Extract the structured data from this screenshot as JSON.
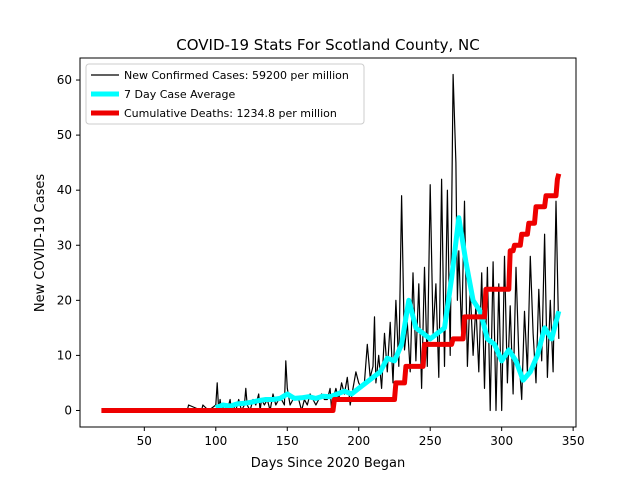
{
  "chart_data": {
    "type": "line",
    "title": "COVID-19 Stats For Scotland County, NC",
    "xlabel": "Days Since 2020 Began",
    "ylabel": "New COVID-19 Cases",
    "xlim": [
      5,
      352
    ],
    "ylim": [
      -3,
      64
    ],
    "xticks": [
      50,
      100,
      150,
      200,
      250,
      300,
      350
    ],
    "yticks": [
      0,
      10,
      20,
      30,
      40,
      50,
      60
    ],
    "grid": false,
    "legend_position": "top-left",
    "series": [
      {
        "name": "New Confirmed Cases: 59200 per million",
        "color": "#000000",
        "style": "thin",
        "x": [
          80,
          81,
          90,
          91,
          95,
          100,
          101,
          102,
          103,
          104,
          106,
          108,
          110,
          111,
          112,
          114,
          116,
          118,
          120,
          121,
          122,
          124,
          126,
          128,
          130,
          131,
          132,
          134,
          136,
          138,
          140,
          142,
          144,
          146,
          148,
          149,
          150,
          152,
          154,
          156,
          158,
          160,
          162,
          164,
          166,
          168,
          170,
          172,
          174,
          176,
          178,
          180,
          181,
          182,
          184,
          186,
          188,
          190,
          192,
          194,
          196,
          198,
          200,
          202,
          204,
          206,
          208,
          210,
          211,
          212,
          214,
          216,
          218,
          220,
          222,
          224,
          226,
          228,
          230,
          232,
          234,
          236,
          238,
          240,
          242,
          244,
          246,
          248,
          250,
          252,
          254,
          256,
          258,
          260,
          262,
          264,
          266,
          268,
          269,
          270,
          272,
          274,
          276,
          278,
          280,
          282,
          284,
          286,
          288,
          290,
          292,
          294,
          296,
          298,
          300,
          302,
          304,
          306,
          308,
          310,
          312,
          314,
          316,
          318,
          320,
          322,
          324,
          326,
          328,
          330,
          332,
          334,
          336,
          338,
          340
        ],
        "y": [
          0,
          1,
          0,
          1,
          0,
          1,
          5,
          0,
          2,
          0,
          1,
          0,
          2,
          0,
          1,
          0,
          2,
          0,
          1,
          4,
          1,
          0,
          2,
          1,
          3,
          0,
          2,
          1,
          2,
          0,
          3,
          1,
          2,
          2,
          1,
          9,
          4,
          1,
          2,
          2,
          2,
          0,
          2,
          1,
          3,
          2,
          1,
          2,
          3,
          2,
          2,
          4,
          0,
          2,
          4,
          2,
          5,
          3,
          6,
          1,
          4,
          7,
          5,
          4,
          5,
          12,
          6,
          8,
          17,
          5,
          10,
          4,
          14,
          7,
          16,
          5,
          20,
          8,
          39,
          11,
          16,
          7,
          25,
          9,
          23,
          4,
          26,
          8,
          41,
          14,
          23,
          6,
          42,
          8,
          40,
          10,
          61,
          45,
          20,
          29,
          14,
          38,
          8,
          22,
          10,
          19,
          7,
          25,
          4,
          26,
          0,
          27,
          0,
          23,
          0,
          28,
          5,
          19,
          3,
          26,
          10,
          2,
          18,
          7,
          28,
          14,
          5,
          22,
          9,
          32,
          6,
          20,
          7,
          38,
          13
        ]
      },
      {
        "name": "7 Day Case Average",
        "color": "#00ffff",
        "style": "thick",
        "x": [
          100,
          105,
          110,
          115,
          120,
          125,
          130,
          135,
          140,
          145,
          150,
          155,
          160,
          165,
          170,
          175,
          180,
          185,
          190,
          195,
          200,
          205,
          210,
          215,
          220,
          225,
          230,
          235,
          240,
          245,
          250,
          255,
          260,
          265,
          270,
          275,
          280,
          285,
          290,
          295,
          300,
          305,
          310,
          315,
          320,
          325,
          330,
          335,
          340
        ],
        "y": [
          0.5,
          1,
          0.8,
          1.2,
          1.3,
          1.5,
          1.8,
          2,
          2,
          2.2,
          3,
          2.2,
          2.3,
          2.5,
          2.2,
          2.6,
          2.5,
          3,
          3.5,
          3,
          4,
          5,
          6,
          7,
          9.5,
          9,
          12,
          20,
          15,
          14,
          13,
          14,
          15,
          24,
          35,
          27,
          20,
          18,
          13,
          12,
          9,
          11,
          9,
          5.5,
          7,
          10,
          15,
          13,
          18
        ]
      },
      {
        "name": "Cumulative Deaths: 1234.8 per million",
        "color": "#ee0000",
        "style": "thick-step",
        "x": [
          20,
          182,
          183,
          225,
          226,
          232,
          233,
          245,
          246,
          265,
          266,
          273,
          274,
          288,
          289,
          305,
          306,
          308,
          309,
          313,
          314,
          318,
          319,
          323,
          324,
          330,
          331,
          338,
          339,
          340
        ],
        "y": [
          0,
          0,
          2,
          2,
          5,
          5,
          8,
          8,
          12,
          12,
          13,
          13,
          17,
          17,
          22,
          22,
          29,
          29,
          30,
          30,
          32,
          32,
          34,
          34,
          37,
          37,
          39,
          39,
          42,
          43
        ]
      }
    ]
  }
}
